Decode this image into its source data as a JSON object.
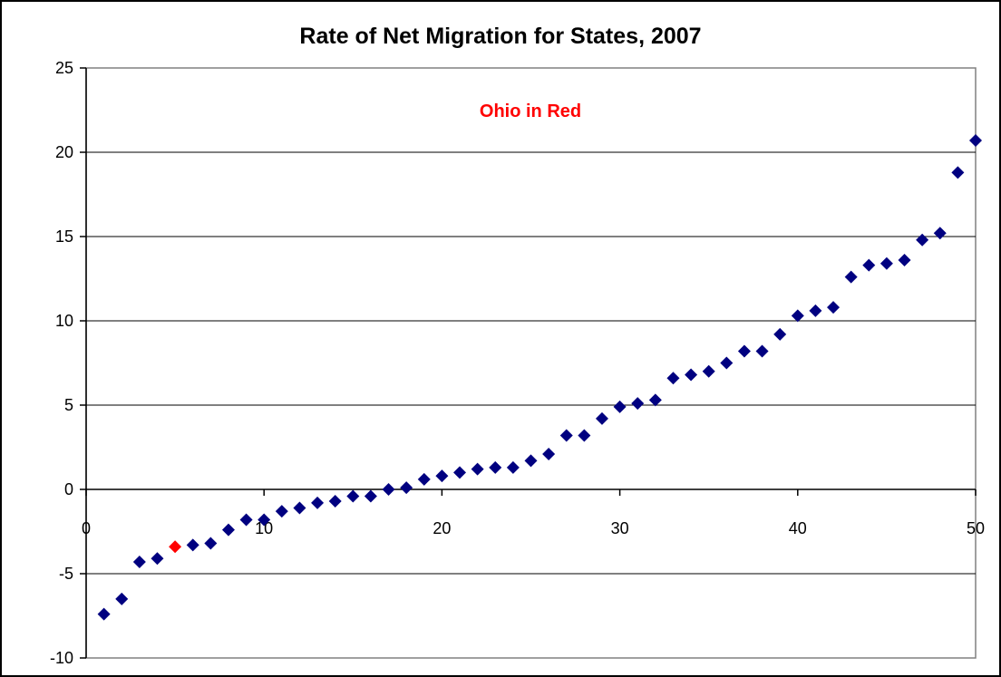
{
  "chart_data": {
    "type": "scatter",
    "title": "Rate of Net Migration for States, 2007",
    "annotation": {
      "text": "Ohio in Red",
      "color": "#ff0000"
    },
    "xlabel": "",
    "ylabel": "",
    "xlim": [
      0,
      50
    ],
    "ylim": [
      -10,
      25
    ],
    "x_ticks": [
      "0",
      "10",
      "20",
      "30",
      "40",
      "50"
    ],
    "y_ticks": [
      "25",
      "20",
      "15",
      "10",
      "5",
      "0",
      "-5",
      "-10"
    ],
    "grid": "horizontal",
    "legend": "none",
    "colors": {
      "point": "#000080",
      "highlight": "#ff0000"
    },
    "highlight_x": 5,
    "series": [
      {
        "points": [
          [
            1,
            -7.4
          ],
          [
            2,
            -6.5
          ],
          [
            3,
            -4.3
          ],
          [
            4,
            -4.1
          ],
          [
            5,
            -3.4
          ],
          [
            6,
            -3.3
          ],
          [
            7,
            -3.2
          ],
          [
            8,
            -2.4
          ],
          [
            9,
            -1.8
          ],
          [
            10,
            -1.8
          ],
          [
            11,
            -1.3
          ],
          [
            12,
            -1.1
          ],
          [
            13,
            -0.8
          ],
          [
            14,
            -0.7
          ],
          [
            15,
            -0.4
          ],
          [
            16,
            -0.4
          ],
          [
            17,
            0.0
          ],
          [
            18,
            0.1
          ],
          [
            19,
            0.6
          ],
          [
            20,
            0.8
          ],
          [
            21,
            1.0
          ],
          [
            22,
            1.2
          ],
          [
            23,
            1.3
          ],
          [
            24,
            1.3
          ],
          [
            25,
            1.7
          ],
          [
            26,
            2.1
          ],
          [
            27,
            3.2
          ],
          [
            28,
            3.2
          ],
          [
            29,
            4.2
          ],
          [
            30,
            4.9
          ],
          [
            31,
            5.1
          ],
          [
            32,
            5.3
          ],
          [
            33,
            6.6
          ],
          [
            34,
            6.8
          ],
          [
            35,
            7.0
          ],
          [
            36,
            7.5
          ],
          [
            37,
            8.2
          ],
          [
            38,
            8.2
          ],
          [
            39,
            9.2
          ],
          [
            40,
            10.3
          ],
          [
            41,
            10.6
          ],
          [
            42,
            10.8
          ],
          [
            43,
            12.6
          ],
          [
            44,
            13.3
          ],
          [
            45,
            13.4
          ],
          [
            46,
            13.6
          ],
          [
            47,
            14.8
          ],
          [
            48,
            15.2
          ],
          [
            49,
            18.8
          ],
          [
            50,
            20.7
          ]
        ]
      }
    ]
  }
}
